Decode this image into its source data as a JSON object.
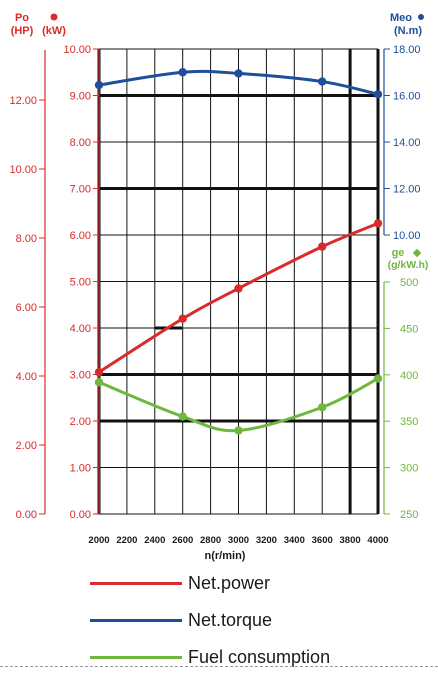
{
  "colors": {
    "power": "#d92b2b",
    "torque": "#1f4f9a",
    "fuel": "#6fb73f",
    "grid": "#111111",
    "text": "#1a1a1a"
  },
  "axes": {
    "hp": {
      "title": "Po",
      "unit": "(HP)",
      "ticks": [
        "0.00",
        "2.00",
        "4.00",
        "6.00",
        "8.00",
        "10.00",
        "12.00"
      ]
    },
    "kw": {
      "unit": "(kW)",
      "ticks": [
        "0.00",
        "1.00",
        "2.00",
        "3.00",
        "4.00",
        "5.00",
        "6.00",
        "7.00",
        "8.00",
        "9.00",
        "10.00"
      ]
    },
    "torque": {
      "title": "Meo",
      "unit": "(N.m)",
      "ticks": [
        "10.00",
        "12.00",
        "14.00",
        "16.00",
        "18.00"
      ]
    },
    "fuel": {
      "title": "ge",
      "unit": "(g/kW.h)",
      "ticks": [
        "250",
        "300",
        "350",
        "400",
        "450",
        "500"
      ]
    },
    "x": {
      "label": "n(r/min)",
      "ticks": [
        "2000",
        "2200",
        "2400",
        "2600",
        "2800",
        "3000",
        "3200",
        "3400",
        "3600",
        "3800",
        "4000"
      ]
    }
  },
  "chart_data": {
    "type": "line",
    "xlabel": "n(r/min)",
    "xlim": [
      2000,
      4000
    ],
    "grid": true,
    "legend_position": "bottom",
    "y_axes": [
      {
        "name": "Po (kW)",
        "side": "left-inner",
        "ylim": [
          0,
          10
        ]
      },
      {
        "name": "Po (HP)",
        "side": "left-outer",
        "ylim": [
          0,
          13.4
        ]
      },
      {
        "name": "Meo (N.m)",
        "side": "right-upper",
        "ylim": [
          10,
          18
        ]
      },
      {
        "name": "ge (g/kW.h)",
        "side": "right-lower",
        "ylim": [
          250,
          500
        ]
      }
    ],
    "series": [
      {
        "name": "Net.power",
        "axis": "Po (kW)",
        "color": "#d92b2b",
        "x": [
          2000,
          2600,
          3000,
          3600,
          4000
        ],
        "y": [
          3.05,
          4.2,
          4.85,
          5.75,
          6.25
        ]
      },
      {
        "name": "Net.torque",
        "axis": "Meo (N.m)",
        "color": "#1f4f9a",
        "x": [
          2000,
          2600,
          3000,
          3600,
          4000
        ],
        "y": [
          16.45,
          17.0,
          16.95,
          16.6,
          16.05
        ]
      },
      {
        "name": "Fuel consumption",
        "axis": "ge (g/kW.h)",
        "color": "#6fb73f",
        "x": [
          2000,
          2600,
          3000,
          3600,
          4000
        ],
        "y": [
          392,
          355,
          340,
          365,
          396
        ]
      }
    ]
  },
  "legend": [
    {
      "label": "Net.power",
      "color": "#d92b2b"
    },
    {
      "label": "Net.torque",
      "color": "#1f4f9a"
    },
    {
      "label": "Fuel consumption",
      "color": "#6fb73f"
    }
  ]
}
